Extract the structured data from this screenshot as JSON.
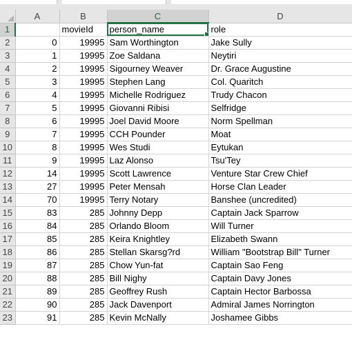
{
  "columns": [
    "A",
    "B",
    "C",
    "D"
  ],
  "selected_column": "C",
  "active_cell": "C1",
  "colors": {
    "header_bg": "#e6e6e6",
    "selection_green": "#217346",
    "gridline": "#d4d4d4"
  },
  "rows": [
    {
      "n": "1",
      "a": "",
      "b": "movieId",
      "c": "person_name",
      "d": "role"
    },
    {
      "n": "2",
      "a": "0",
      "b": "19995",
      "c": "Sam Worthington",
      "d": "Jake Sully"
    },
    {
      "n": "3",
      "a": "1",
      "b": "19995",
      "c": "Zoe Saldana",
      "d": "Neytiri"
    },
    {
      "n": "4",
      "a": "2",
      "b": "19995",
      "c": "Sigourney Weaver",
      "d": "Dr. Grace Augustine"
    },
    {
      "n": "5",
      "a": "3",
      "b": "19995",
      "c": "Stephen Lang",
      "d": "Col. Quaritch"
    },
    {
      "n": "6",
      "a": "4",
      "b": "19995",
      "c": "Michelle Rodriguez",
      "d": "Trudy Chacon"
    },
    {
      "n": "7",
      "a": "5",
      "b": "19995",
      "c": "Giovanni Ribisi",
      "d": "Selfridge"
    },
    {
      "n": "8",
      "a": "6",
      "b": "19995",
      "c": "Joel David Moore",
      "d": "Norm Spellman"
    },
    {
      "n": "9",
      "a": "7",
      "b": "19995",
      "c": "CCH Pounder",
      "d": "Moat"
    },
    {
      "n": "10",
      "a": "8",
      "b": "19995",
      "c": "Wes Studi",
      "d": "Eytukan"
    },
    {
      "n": "11",
      "a": "9",
      "b": "19995",
      "c": "Laz Alonso",
      "d": "Tsu'Tey"
    },
    {
      "n": "12",
      "a": "14",
      "b": "19995",
      "c": "Scott Lawrence",
      "d": "Venture Star Crew Chief"
    },
    {
      "n": "13",
      "a": "27",
      "b": "19995",
      "c": "Peter Mensah",
      "d": "Horse Clan Leader"
    },
    {
      "n": "14",
      "a": "70",
      "b": "19995",
      "c": "Terry Notary",
      "d": "Banshee (uncredited)"
    },
    {
      "n": "15",
      "a": "83",
      "b": "285",
      "c": "Johnny Depp",
      "d": "Captain Jack Sparrow"
    },
    {
      "n": "16",
      "a": "84",
      "b": "285",
      "c": "Orlando Bloom",
      "d": "Will Turner"
    },
    {
      "n": "17",
      "a": "85",
      "b": "285",
      "c": "Keira Knightley",
      "d": "Elizabeth Swann"
    },
    {
      "n": "18",
      "a": "86",
      "b": "285",
      "c": "Stellan Skarsg?rd",
      "d": "William \"Bootstrap Bill\" Turner"
    },
    {
      "n": "19",
      "a": "87",
      "b": "285",
      "c": "Chow Yun-fat",
      "d": "Captain Sao Feng"
    },
    {
      "n": "20",
      "a": "88",
      "b": "285",
      "c": "Bill Nighy",
      "d": "Captain Davy Jones"
    },
    {
      "n": "21",
      "a": "89",
      "b": "285",
      "c": "Geoffrey Rush",
      "d": "Captain Hector Barbossa"
    },
    {
      "n": "22",
      "a": "90",
      "b": "285",
      "c": "Jack Davenport",
      "d": "Admiral James Norrington"
    },
    {
      "n": "23",
      "a": "91",
      "b": "285",
      "c": "Kevin McNally",
      "d": "Joshamee Gibbs"
    }
  ]
}
